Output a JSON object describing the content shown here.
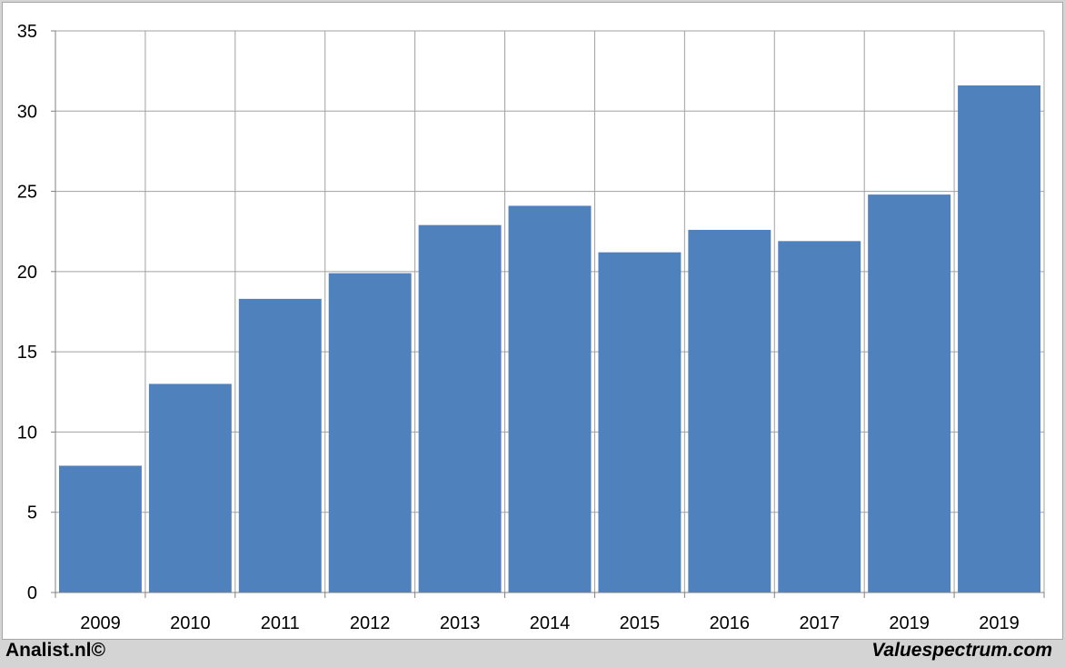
{
  "chart_data": {
    "type": "bar",
    "categories": [
      "2009",
      "2010",
      "2011",
      "2012",
      "2013",
      "2014",
      "2015",
      "2016",
      "2017",
      "2019",
      "2019"
    ],
    "values": [
      7.9,
      13.0,
      18.3,
      19.9,
      22.9,
      24.1,
      21.2,
      22.6,
      21.9,
      24.8,
      31.6
    ],
    "title": "",
    "xlabel": "",
    "ylabel": "",
    "ylim": [
      0,
      35
    ],
    "yticks": [
      0,
      5,
      10,
      15,
      20,
      25,
      30,
      35
    ],
    "grid": true,
    "bar_color": "#4f81bd",
    "grid_color": "#a0a0a0"
  },
  "footer": {
    "left": "Analist.nl©",
    "right": "Valuespectrum.com"
  }
}
